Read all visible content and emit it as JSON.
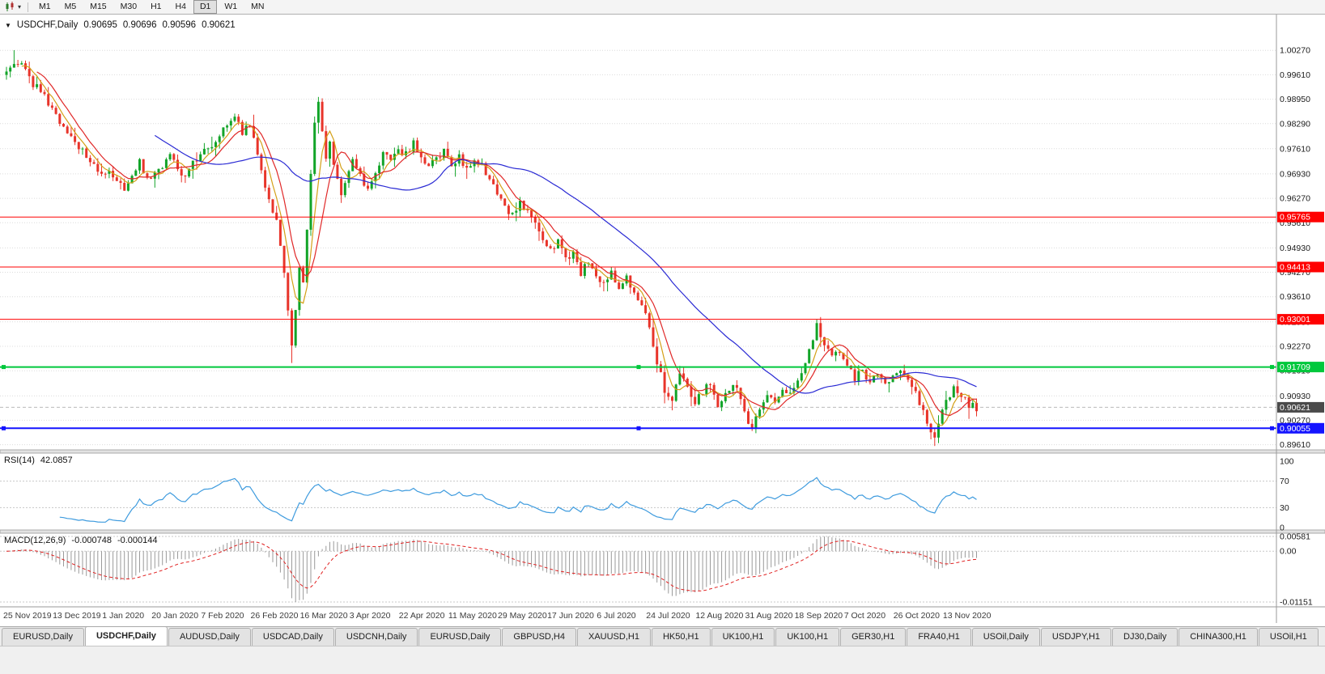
{
  "toolbar": {
    "timeframes": [
      {
        "label": "M1",
        "active": false
      },
      {
        "label": "M5",
        "active": false
      },
      {
        "label": "M15",
        "active": false
      },
      {
        "label": "M30",
        "active": false
      },
      {
        "label": "H1",
        "active": false
      },
      {
        "label": "H4",
        "active": false
      },
      {
        "label": "D1",
        "active": true
      },
      {
        "label": "W1",
        "active": false
      },
      {
        "label": "MN",
        "active": false
      }
    ]
  },
  "chart": {
    "symbol_period": "USDCHF,Daily",
    "ohlc": {
      "open": "0.90695",
      "high": "0.90696",
      "low": "0.90596",
      "close": "0.90621"
    },
    "menu_triangle_icon": "▼",
    "current_price_label": "0.90621",
    "price_scale_ticks": [
      "1.00270",
      "0.99610",
      "0.98950",
      "0.98290",
      "0.97610",
      "0.96930",
      "0.96270",
      "0.95610",
      "0.94930",
      "0.94270",
      "0.93610",
      "0.92930",
      "0.92270",
      "0.91610",
      "0.90930",
      "0.90270",
      "0.89610"
    ],
    "horizontal_lines": [
      {
        "price": 0.95765,
        "label": "0.95765",
        "color": "#FF0000",
        "width": 1,
        "selected": false
      },
      {
        "price": 0.94413,
        "label": "0.94413",
        "color": "#FF0000",
        "width": 1,
        "selected": false
      },
      {
        "price": 0.93001,
        "label": "0.93001",
        "color": "#FF0000",
        "width": 1,
        "selected": false
      },
      {
        "price": 0.91709,
        "label": "0.91709",
        "color": "#00C83C",
        "width": 2,
        "selected": true
      },
      {
        "price": 0.90055,
        "label": "0.90055",
        "color": "#1414FF",
        "width": 2,
        "selected": true
      }
    ],
    "colors": {
      "bull": "#12A428",
      "bear": "#E8342A",
      "ma_fast": "#D4A017",
      "ma_mid": "#E02828",
      "ma_slow": "#2A2AD4",
      "grid": "#DCDCDC",
      "rsi_line": "#3E9BDE",
      "macd_hist": "#9A9A9A",
      "macd_signal": "#E02020",
      "current_price_tag_bg": "#4A4A4A",
      "scale_text": "#1A1A1A",
      "date_text": "#3C3C3C"
    }
  },
  "chart_data": {
    "type": "candlestick",
    "symbol": "USDCHF",
    "period": "Daily",
    "bar_count": 256,
    "bars_per_x_label": 13,
    "x_labels": [
      "25 Nov 2019",
      "13 Dec 2019",
      "1 Jan 2020",
      "20 Jan 2020",
      "7 Feb 2020",
      "26 Feb 2020",
      "16 Mar 2020",
      "3 Apr 2020",
      "22 Apr 2020",
      "11 May 2020",
      "29 May 2020",
      "17 Jun 2020",
      "6 Jul 2020",
      "24 Jul 2020",
      "12 Aug 2020",
      "31 Aug 2020",
      "18 Sep 2020",
      "7 Oct 2020",
      "26 Oct 2020",
      "13 Nov 2020"
    ],
    "price_axis": {
      "top": 1.0115,
      "bottom": 0.8947
    },
    "price_trajectory_anchors": [
      [
        0,
        0.9965
      ],
      [
        2,
        1.0
      ],
      [
        4,
        0.9995
      ],
      [
        6,
        0.995
      ],
      [
        9,
        0.9915
      ],
      [
        13,
        0.985
      ],
      [
        16,
        0.98
      ],
      [
        19,
        0.9768
      ],
      [
        22,
        0.9735
      ],
      [
        25,
        0.969
      ],
      [
        27,
        0.9712
      ],
      [
        29,
        0.9675
      ],
      [
        31,
        0.9658
      ],
      [
        33,
        0.969
      ],
      [
        35,
        0.9722
      ],
      [
        37,
        0.9678
      ],
      [
        39,
        0.9688
      ],
      [
        41,
        0.9718
      ],
      [
        43,
        0.9742
      ],
      [
        45,
        0.9702
      ],
      [
        47,
        0.9682
      ],
      [
        49,
        0.9718
      ],
      [
        52,
        0.9752
      ],
      [
        55,
        0.9788
      ],
      [
        58,
        0.9822
      ],
      [
        60,
        0.9845
      ],
      [
        62,
        0.9802
      ],
      [
        64,
        0.9832
      ],
      [
        65,
        0.9788
      ],
      [
        67,
        0.9695
      ],
      [
        69,
        0.9625
      ],
      [
        71,
        0.9565
      ],
      [
        73,
        0.942
      ],
      [
        75,
        0.924
      ],
      [
        76,
        0.933
      ],
      [
        77,
        0.945
      ],
      [
        78,
        0.941
      ],
      [
        79,
        0.954
      ],
      [
        80,
        0.969
      ],
      [
        81,
        0.983
      ],
      [
        82,
        0.9885
      ],
      [
        83,
        0.98
      ],
      [
        84,
        0.9742
      ],
      [
        85,
        0.979
      ],
      [
        86,
        0.9715
      ],
      [
        88,
        0.964
      ],
      [
        90,
        0.97
      ],
      [
        91,
        0.9728
      ],
      [
        93,
        0.9688
      ],
      [
        95,
        0.9655
      ],
      [
        97,
        0.9705
      ],
      [
        99,
        0.9748
      ],
      [
        101,
        0.9722
      ],
      [
        103,
        0.9762
      ],
      [
        105,
        0.9745
      ],
      [
        107,
        0.9778
      ],
      [
        109,
        0.9735
      ],
      [
        111,
        0.9705
      ],
      [
        113,
        0.9735
      ],
      [
        115,
        0.9758
      ],
      [
        117,
        0.9712
      ],
      [
        119,
        0.9742
      ],
      [
        121,
        0.9705
      ],
      [
        123,
        0.9732
      ],
      [
        125,
        0.9712
      ],
      [
        127,
        0.9682
      ],
      [
        129,
        0.9635
      ],
      [
        131,
        0.9602
      ],
      [
        133,
        0.9582
      ],
      [
        135,
        0.9618
      ],
      [
        137,
        0.9585
      ],
      [
        139,
        0.9552
      ],
      [
        141,
        0.9505
      ],
      [
        143,
        0.9482
      ],
      [
        145,
        0.9512
      ],
      [
        147,
        0.9462
      ],
      [
        149,
        0.9485
      ],
      [
        151,
        0.9425
      ],
      [
        153,
        0.9452
      ],
      [
        155,
        0.9415
      ],
      [
        157,
        0.9402
      ],
      [
        159,
        0.9432
      ],
      [
        161,
        0.9385
      ],
      [
        163,
        0.9412
      ],
      [
        165,
        0.9362
      ],
      [
        167,
        0.9332
      ],
      [
        169,
        0.9285
      ],
      [
        171,
        0.9185
      ],
      [
        173,
        0.9108
      ],
      [
        175,
        0.9082
      ],
      [
        177,
        0.9148
      ],
      [
        179,
        0.9122
      ],
      [
        181,
        0.9072
      ],
      [
        183,
        0.9105
      ],
      [
        185,
        0.9122
      ],
      [
        187,
        0.9062
      ],
      [
        189,
        0.9098
      ],
      [
        191,
        0.9128
      ],
      [
        193,
        0.9082
      ],
      [
        195,
        0.9018
      ],
      [
        196,
        0.8998
      ],
      [
        198,
        0.9058
      ],
      [
        200,
        0.9098
      ],
      [
        202,
        0.9072
      ],
      [
        204,
        0.9118
      ],
      [
        206,
        0.9092
      ],
      [
        208,
        0.9128
      ],
      [
        210,
        0.9178
      ],
      [
        212,
        0.9252
      ],
      [
        213,
        0.9288
      ],
      [
        215,
        0.9232
      ],
      [
        217,
        0.9192
      ],
      [
        219,
        0.9212
      ],
      [
        221,
        0.9172
      ],
      [
        223,
        0.9142
      ],
      [
        225,
        0.9162
      ],
      [
        227,
        0.9132
      ],
      [
        229,
        0.9152
      ],
      [
        231,
        0.9122
      ],
      [
        233,
        0.9142
      ],
      [
        235,
        0.9162
      ],
      [
        237,
        0.9135
      ],
      [
        239,
        0.9095
      ],
      [
        241,
        0.9052
      ],
      [
        243,
        0.9005
      ],
      [
        244,
        0.8985
      ],
      [
        245,
        0.9028
      ],
      [
        247,
        0.9078
      ],
      [
        249,
        0.9108
      ],
      [
        251,
        0.9088
      ],
      [
        253,
        0.9068
      ],
      [
        255,
        0.9062
      ]
    ],
    "wick_extremes": [
      [
        2,
        "h",
        1.00275
      ],
      [
        31,
        "l",
        0.9648
      ],
      [
        60,
        "h",
        0.9856
      ],
      [
        75,
        "l",
        0.9182
      ],
      [
        82,
        "h",
        0.9901
      ],
      [
        175,
        "l",
        0.9054
      ],
      [
        196,
        "l",
        0.8998
      ],
      [
        213,
        "h",
        0.93
      ],
      [
        244,
        "l",
        0.8961
      ]
    ],
    "moving_averages": [
      {
        "type": "SMA",
        "period": 5,
        "color_key": "ma_fast"
      },
      {
        "type": "SMA",
        "period": 9,
        "color_key": "ma_mid"
      },
      {
        "type": "SMA",
        "period": 40,
        "color_key": "ma_slow"
      }
    ],
    "indicators": [
      {
        "name": "RSI",
        "params": "14",
        "current": "42.0857",
        "levels": [
          "100",
          "70",
          "30",
          "0"
        ],
        "dotted_levels": [
          70,
          30
        ]
      },
      {
        "name": "MACD",
        "params": "12,26,9",
        "current_main": "-0.000748",
        "current_signal": "-0.000144",
        "scale_labels": {
          "top": "0.00581",
          "zero": "0.00",
          "bottom": "-0.01151"
        }
      }
    ]
  },
  "panels": {
    "rsi": {
      "label": "RSI(14)",
      "value": "42.0857"
    },
    "macd": {
      "label": "MACD(12,26,9)",
      "value_main": "-0.000748",
      "value_signal": "-0.000144"
    }
  },
  "tab_bar": {
    "scroll_right_icon": "▸",
    "tabs": [
      {
        "label": "EURUSD,Daily",
        "active": false
      },
      {
        "label": "USDCHF,Daily",
        "active": true
      },
      {
        "label": "AUDUSD,Daily",
        "active": false
      },
      {
        "label": "USDCAD,Daily",
        "active": false
      },
      {
        "label": "USDCNH,Daily",
        "active": false
      },
      {
        "label": "EURUSD,Daily",
        "active": false
      },
      {
        "label": "GBPUSD,H4",
        "active": false
      },
      {
        "label": "XAUUSD,H1",
        "active": false
      },
      {
        "label": "HK50,H1",
        "active": false
      },
      {
        "label": "UK100,H1",
        "active": false
      },
      {
        "label": "UK100,H1",
        "active": false
      },
      {
        "label": "GER30,H1",
        "active": false
      },
      {
        "label": "FRA40,H1",
        "active": false
      },
      {
        "label": "USOil,Daily",
        "active": false
      },
      {
        "label": "USDJPY,H1",
        "active": false
      },
      {
        "label": "DJ30,Daily",
        "active": false
      },
      {
        "label": "CHINA300,H1",
        "active": false
      },
      {
        "label": "USOil,H1",
        "active": false
      }
    ]
  }
}
